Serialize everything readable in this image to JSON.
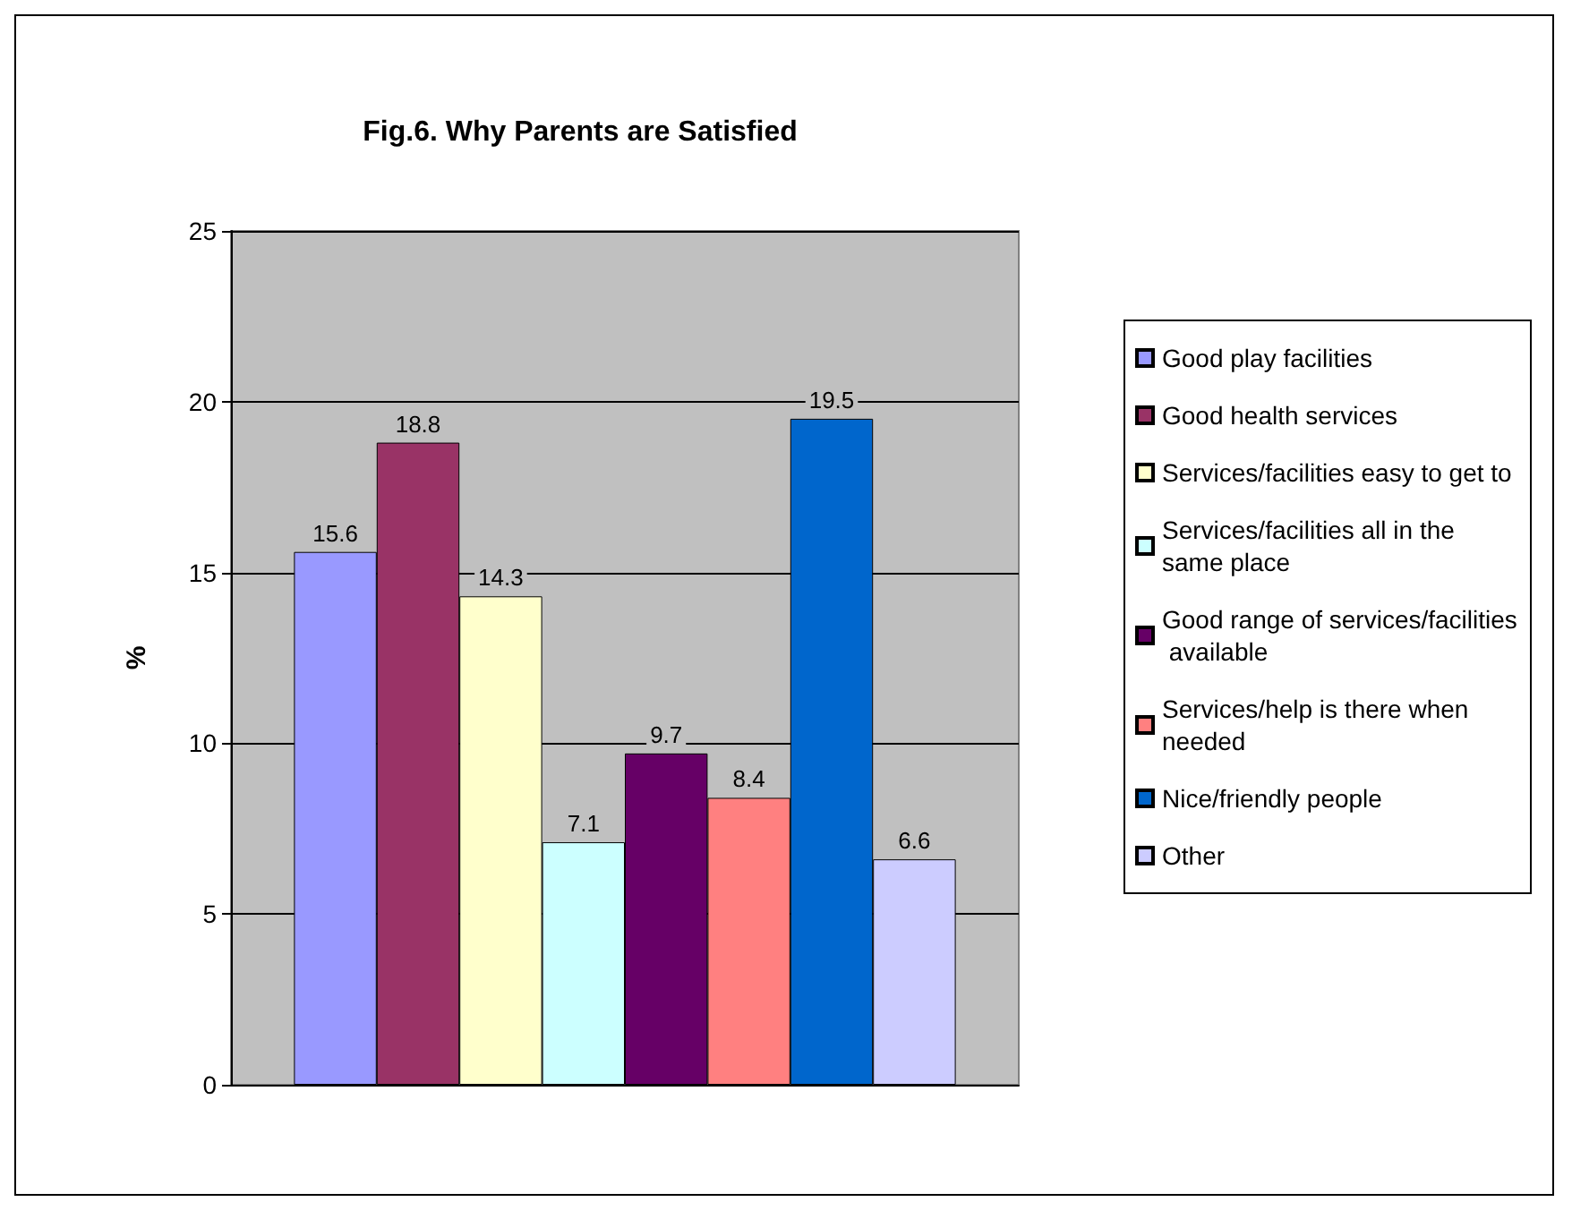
{
  "chart_data": {
    "type": "bar",
    "title": "Fig.6. Why Parents are Satisfied",
    "ylabel": "%",
    "categories": [
      null
    ],
    "series": [
      {
        "name": "Good play facilities",
        "color": "#9999ff",
        "values": [
          15.6
        ]
      },
      {
        "name": "Good health services",
        "color": "#993366",
        "values": [
          18.8
        ]
      },
      {
        "name": "Services/facilities easy to get to",
        "color": "#ffffcc",
        "values": [
          14.3
        ]
      },
      {
        "name": "Services/facilities all in the same place",
        "color": "#ccffff",
        "values": [
          7.1
        ]
      },
      {
        "name": "Good range of services/facilities available",
        "color": "#660066",
        "values": [
          9.7
        ]
      },
      {
        "name": "Services/help is there when needed",
        "color": "#ff8080",
        "values": [
          8.4
        ]
      },
      {
        "name": "Nice/friendly people",
        "color": "#0066cc",
        "values": [
          19.5
        ]
      },
      {
        "name": "Other",
        "color": "#ccccff",
        "values": [
          6.6
        ]
      }
    ],
    "ylim": [
      0,
      25
    ],
    "yticks": [
      0,
      5,
      10,
      15,
      20,
      25
    ],
    "grid": "y",
    "legend": "right",
    "data_labels": true
  }
}
